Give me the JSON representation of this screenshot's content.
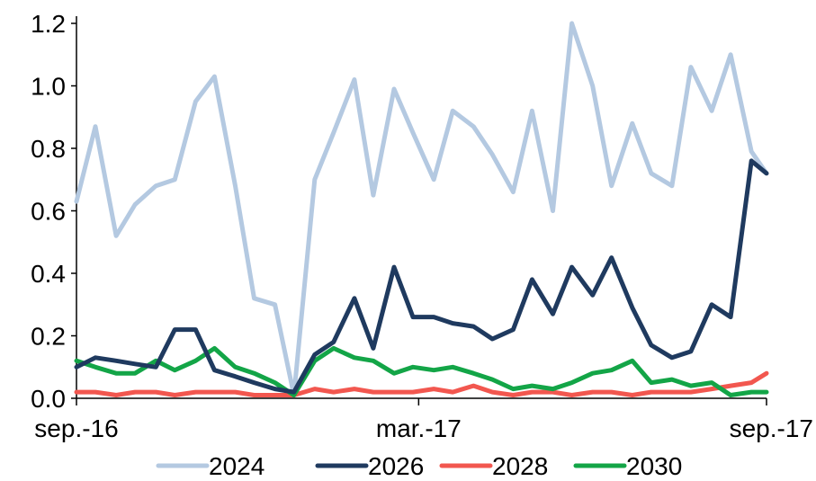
{
  "colors": {
    "2024": "#b4c9e1",
    "2026": "#1f3a5f",
    "2028": "#f2574f",
    "2030": "#13a547"
  },
  "chart_data": {
    "type": "line",
    "title": "",
    "xlabel": "",
    "ylabel": "",
    "x_ticks": [
      "sep.-16",
      "mar.-17",
      "sep.-17"
    ],
    "x_range": [
      "2016-09-01",
      "2017-09-01"
    ],
    "ylim": [
      0,
      1.2
    ],
    "y_ticks": [
      "0.0",
      "0.2",
      "0.4",
      "0.6",
      "0.8",
      "1.0",
      "1.2"
    ],
    "y_tick_values": [
      0,
      0.2,
      0.4,
      0.6,
      0.8,
      1.0,
      1.2
    ],
    "grid": false,
    "legend_position": "bottom",
    "x": [
      "2016-09-01",
      "2016-09-11",
      "2016-09-22",
      "2016-10-02",
      "2016-10-13",
      "2016-10-23",
      "2016-11-03",
      "2016-11-13",
      "2016-11-24",
      "2016-12-04",
      "2016-12-15",
      "2016-12-25",
      "2017-01-05",
      "2017-01-15",
      "2017-01-26",
      "2017-02-05",
      "2017-02-16",
      "2017-02-26",
      "2017-03-09",
      "2017-03-19",
      "2017-03-30",
      "2017-04-09",
      "2017-04-20",
      "2017-04-30",
      "2017-05-11",
      "2017-05-21",
      "2017-06-01",
      "2017-06-11",
      "2017-06-22",
      "2017-07-02",
      "2017-07-13",
      "2017-07-23",
      "2017-08-03",
      "2017-08-13",
      "2017-08-24",
      "2017-09-01"
    ],
    "series": [
      {
        "name": "2024",
        "values": [
          0.63,
          0.87,
          0.52,
          0.62,
          0.68,
          0.7,
          0.95,
          1.03,
          0.68,
          0.32,
          0.3,
          0.01,
          0.7,
          0.85,
          1.02,
          0.65,
          0.99,
          0.85,
          0.7,
          0.92,
          0.87,
          0.78,
          0.66,
          0.92,
          0.6,
          1.2,
          1.0,
          0.68,
          0.88,
          0.72,
          0.68,
          1.06,
          0.92,
          1.1,
          0.79,
          0.72
        ]
      },
      {
        "name": "2026",
        "values": [
          0.1,
          0.13,
          0.12,
          0.11,
          0.1,
          0.22,
          0.22,
          0.09,
          0.07,
          0.05,
          0.03,
          0.02,
          0.14,
          0.18,
          0.32,
          0.16,
          0.42,
          0.26,
          0.26,
          0.24,
          0.23,
          0.19,
          0.22,
          0.38,
          0.27,
          0.42,
          0.33,
          0.45,
          0.29,
          0.17,
          0.13,
          0.15,
          0.3,
          0.26,
          0.76,
          0.72
        ]
      },
      {
        "name": "2028",
        "values": [
          0.02,
          0.02,
          0.01,
          0.02,
          0.02,
          0.01,
          0.02,
          0.02,
          0.02,
          0.01,
          0.01,
          0.01,
          0.03,
          0.02,
          0.03,
          0.02,
          0.02,
          0.02,
          0.03,
          0.02,
          0.04,
          0.02,
          0.01,
          0.02,
          0.02,
          0.01,
          0.02,
          0.02,
          0.01,
          0.02,
          0.02,
          0.02,
          0.03,
          0.04,
          0.05,
          0.08
        ]
      },
      {
        "name": "2030",
        "values": [
          0.12,
          0.1,
          0.08,
          0.08,
          0.12,
          0.09,
          0.12,
          0.16,
          0.1,
          0.08,
          0.05,
          0.01,
          0.12,
          0.16,
          0.13,
          0.12,
          0.08,
          0.1,
          0.09,
          0.1,
          0.08,
          0.06,
          0.03,
          0.04,
          0.03,
          0.05,
          0.08,
          0.09,
          0.12,
          0.05,
          0.06,
          0.04,
          0.05,
          0.01,
          0.02,
          0.02
        ]
      }
    ]
  }
}
